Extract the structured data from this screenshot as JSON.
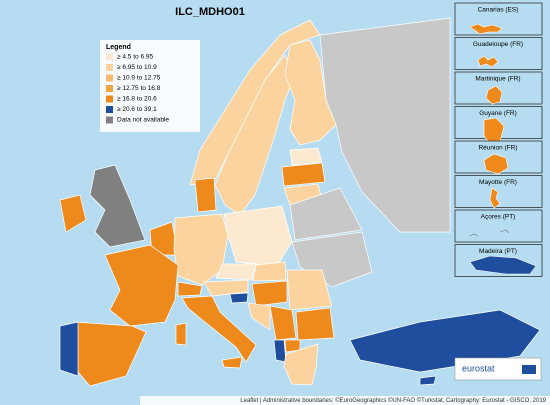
{
  "title": "ILC_MDHO01",
  "legend": {
    "title": "Legend",
    "items": [
      {
        "label": "≥ 4.5 to 6.95",
        "color": "#fde9cf"
      },
      {
        "label": "≥ 6.95 to 10.9",
        "color": "#fbd39f"
      },
      {
        "label": "≥ 10.9 to 12.75",
        "color": "#f8bb6e"
      },
      {
        "label": "≥ 12.75 to 16.8",
        "color": "#f4a443"
      },
      {
        "label": "≥ 16.8 to 20.6",
        "color": "#ee8a1c"
      },
      {
        "label": "≥ 20.6 to 39.1",
        "color": "#1f4e9e"
      },
      {
        "label": "Data not available",
        "color": "#808080"
      }
    ]
  },
  "insets": [
    "Canarias (ES)",
    "Guadeloupe (FR)",
    "Martinique (FR)",
    "Guyane (FR)",
    "Réunion (FR)",
    "Mayotte (FR)",
    "Açores (PT)",
    "Madeira (PT)"
  ],
  "logo": "eurostat",
  "attribution": "Leaflet | Administrative boundaries: ©EuroGeographics ©UN-FAO ©Turkstat, Cartography: Eurostat - GISCO, 2019"
}
